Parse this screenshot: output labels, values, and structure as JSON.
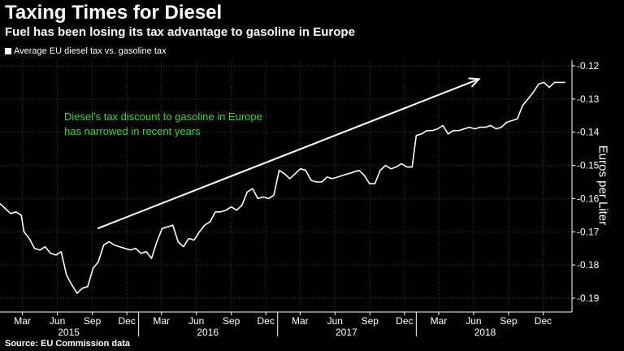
{
  "title": "Taxing Times for Diesel",
  "subtitle": "Fuel has been losing its tax advantage to gasoline in Europe",
  "source": "Source: EU Commission data",
  "colors": {
    "background": "#000000",
    "line": "#ffffff",
    "annotation": "#3fd43f"
  },
  "chart_data": {
    "type": "line",
    "title": "Taxing Times for Diesel",
    "subtitle": "Fuel has been losing its tax advantage to gasoline in Europe",
    "ylabel": "Euros per Liter",
    "ylim": [
      -0.19,
      -0.12
    ],
    "yticks": [
      -0.12,
      -0.13,
      -0.14,
      -0.15,
      -0.16,
      -0.17,
      -0.18,
      -0.19
    ],
    "ytick_labels": [
      "-0.12",
      "-0.13",
      "-0.14",
      "-0.15",
      "-0.16",
      "-0.17",
      "-0.18",
      "-0.19"
    ],
    "y_axis_position": "right",
    "xlim": [
      "2015-01-01",
      "2019-02-15"
    ],
    "xticks": [
      {
        "date": "2015-03-01",
        "label": "Mar"
      },
      {
        "date": "2015-06-01",
        "label": "Jun"
      },
      {
        "date": "2015-09-01",
        "label": "Sep"
      },
      {
        "date": "2015-12-01",
        "label": "Dec"
      },
      {
        "date": "2016-03-01",
        "label": "Mar"
      },
      {
        "date": "2016-06-01",
        "label": "Jun"
      },
      {
        "date": "2016-09-01",
        "label": "Sep"
      },
      {
        "date": "2016-12-01",
        "label": "Dec"
      },
      {
        "date": "2017-03-01",
        "label": "Mar"
      },
      {
        "date": "2017-06-01",
        "label": "Jun"
      },
      {
        "date": "2017-09-01",
        "label": "Sep"
      },
      {
        "date": "2017-12-01",
        "label": "Dec"
      },
      {
        "date": "2018-03-01",
        "label": "Mar"
      },
      {
        "date": "2018-06-01",
        "label": "Jun"
      },
      {
        "date": "2018-09-01",
        "label": "Sep"
      },
      {
        "date": "2018-12-01",
        "label": "Dec"
      }
    ],
    "year_labels": [
      {
        "date": "2015-07-01",
        "label": "2015"
      },
      {
        "date": "2016-07-01",
        "label": "2016"
      },
      {
        "date": "2017-07-01",
        "label": "2017"
      },
      {
        "date": "2018-07-01",
        "label": "2018"
      }
    ],
    "year_boundaries": [
      "2016-01-01",
      "2017-01-01",
      "2018-01-01"
    ],
    "grid": true,
    "legend": "top-left",
    "series": [
      {
        "name": "Average EU diesel tax vs. gasoline tax",
        "points": [
          [
            "2015-01-01",
            -0.1615
          ],
          [
            "2015-01-15",
            -0.163
          ],
          [
            "2015-01-29",
            -0.1645
          ],
          [
            "2015-02-12",
            -0.164
          ],
          [
            "2015-02-26",
            -0.165
          ],
          [
            "2015-03-05",
            -0.17
          ],
          [
            "2015-03-19",
            -0.172
          ],
          [
            "2015-04-02",
            -0.175
          ],
          [
            "2015-04-16",
            -0.1755
          ],
          [
            "2015-04-30",
            -0.1745
          ],
          [
            "2015-05-14",
            -0.1765
          ],
          [
            "2015-05-28",
            -0.177
          ],
          [
            "2015-06-11",
            -0.176
          ],
          [
            "2015-06-25",
            -0.183
          ],
          [
            "2015-07-09",
            -0.186
          ],
          [
            "2015-07-23",
            -0.1885
          ],
          [
            "2015-08-06",
            -0.187
          ],
          [
            "2015-08-20",
            -0.1865
          ],
          [
            "2015-09-03",
            -0.181
          ],
          [
            "2015-09-17",
            -0.179
          ],
          [
            "2015-10-01",
            -0.174
          ],
          [
            "2015-10-15",
            -0.173
          ],
          [
            "2015-10-29",
            -0.174
          ],
          [
            "2015-11-12",
            -0.1745
          ],
          [
            "2015-11-26",
            -0.175
          ],
          [
            "2015-12-10",
            -0.1755
          ],
          [
            "2015-12-24",
            -0.175
          ],
          [
            "2016-01-07",
            -0.1765
          ],
          [
            "2016-01-21",
            -0.176
          ],
          [
            "2016-02-04",
            -0.178
          ],
          [
            "2016-02-18",
            -0.173
          ],
          [
            "2016-03-03",
            -0.169
          ],
          [
            "2016-03-17",
            -0.1685
          ],
          [
            "2016-03-31",
            -0.168
          ],
          [
            "2016-04-14",
            -0.173
          ],
          [
            "2016-04-28",
            -0.1745
          ],
          [
            "2016-05-12",
            -0.172
          ],
          [
            "2016-05-26",
            -0.1725
          ],
          [
            "2016-06-09",
            -0.17
          ],
          [
            "2016-06-23",
            -0.168
          ],
          [
            "2016-07-07",
            -0.167
          ],
          [
            "2016-07-21",
            -0.164
          ],
          [
            "2016-08-04",
            -0.164
          ],
          [
            "2016-08-18",
            -0.1635
          ],
          [
            "2016-09-01",
            -0.1625
          ],
          [
            "2016-09-15",
            -0.1635
          ],
          [
            "2016-09-29",
            -0.162
          ],
          [
            "2016-10-13",
            -0.158
          ],
          [
            "2016-10-27",
            -0.157
          ],
          [
            "2016-11-10",
            -0.16
          ],
          [
            "2016-11-24",
            -0.1595
          ],
          [
            "2016-12-08",
            -0.16
          ],
          [
            "2016-12-22",
            -0.159
          ],
          [
            "2017-01-05",
            -0.1515
          ],
          [
            "2017-01-19",
            -0.1525
          ],
          [
            "2017-02-02",
            -0.154
          ],
          [
            "2017-02-16",
            -0.1525
          ],
          [
            "2017-03-02",
            -0.151
          ],
          [
            "2017-03-16",
            -0.1515
          ],
          [
            "2017-03-30",
            -0.1545
          ],
          [
            "2017-04-13",
            -0.155
          ],
          [
            "2017-04-27",
            -0.155
          ],
          [
            "2017-05-11",
            -0.1535
          ],
          [
            "2017-05-25",
            -0.154
          ],
          [
            "2017-06-08",
            -0.1535
          ],
          [
            "2017-06-22",
            -0.153
          ],
          [
            "2017-07-06",
            -0.1525
          ],
          [
            "2017-07-20",
            -0.152
          ],
          [
            "2017-08-03",
            -0.1515
          ],
          [
            "2017-08-17",
            -0.153
          ],
          [
            "2017-08-31",
            -0.1555
          ],
          [
            "2017-09-14",
            -0.1555
          ],
          [
            "2017-09-28",
            -0.1515
          ],
          [
            "2017-10-12",
            -0.15
          ],
          [
            "2017-10-26",
            -0.151
          ],
          [
            "2017-11-09",
            -0.1505
          ],
          [
            "2017-11-23",
            -0.1495
          ],
          [
            "2017-12-07",
            -0.1505
          ],
          [
            "2017-12-21",
            -0.1505
          ],
          [
            "2018-01-01",
            -0.141
          ],
          [
            "2018-01-15",
            -0.1405
          ],
          [
            "2018-01-29",
            -0.1395
          ],
          [
            "2018-02-12",
            -0.1395
          ],
          [
            "2018-02-26",
            -0.139
          ],
          [
            "2018-03-12",
            -0.138
          ],
          [
            "2018-03-26",
            -0.1405
          ],
          [
            "2018-04-09",
            -0.1395
          ],
          [
            "2018-04-23",
            -0.1395
          ],
          [
            "2018-05-07",
            -0.139
          ],
          [
            "2018-05-21",
            -0.1385
          ],
          [
            "2018-06-04",
            -0.139
          ],
          [
            "2018-06-18",
            -0.1385
          ],
          [
            "2018-07-02",
            -0.1385
          ],
          [
            "2018-07-16",
            -0.138
          ],
          [
            "2018-07-30",
            -0.139
          ],
          [
            "2018-08-13",
            -0.1385
          ],
          [
            "2018-08-27",
            -0.137
          ],
          [
            "2018-09-10",
            -0.1365
          ],
          [
            "2018-09-24",
            -0.136
          ],
          [
            "2018-10-08",
            -0.132
          ],
          [
            "2018-10-22",
            -0.13
          ],
          [
            "2018-11-05",
            -0.128
          ],
          [
            "2018-11-19",
            -0.1255
          ],
          [
            "2018-12-03",
            -0.125
          ],
          [
            "2018-12-17",
            -0.1265
          ],
          [
            "2018-12-31",
            -0.125
          ],
          [
            "2019-01-14",
            -0.125
          ],
          [
            "2019-01-28",
            -0.125
          ]
        ]
      }
    ],
    "annotation": {
      "text_lines": [
        "Diesel's tax discount to gasoline in Europe",
        "has narrowed in recent years"
      ],
      "arrow": {
        "from": [
          "2015-09-15",
          -0.169
        ],
        "to": [
          "2018-06-15",
          -0.124
        ]
      }
    }
  }
}
